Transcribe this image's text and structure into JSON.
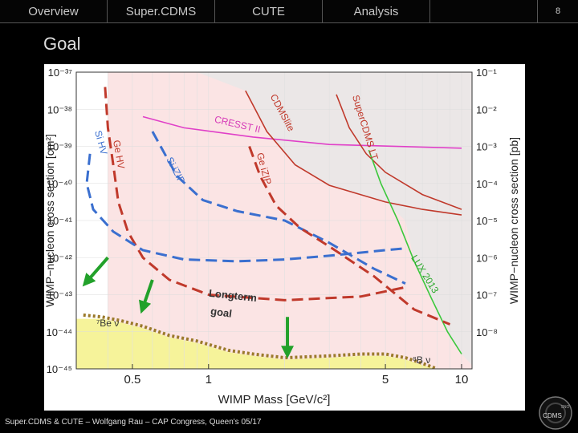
{
  "nav": {
    "tabs": [
      "Overview",
      "Super.CDMS",
      "CUTE",
      "Analysis",
      ""
    ],
    "page_number": "8"
  },
  "slide": {
    "title": "Goal",
    "footer": "Super.CDMS & CUTE – Wolfgang Rau – CAP Congress, Queen's 05/17"
  },
  "logo": {
    "text": "CDMS",
    "small": "SNO"
  },
  "chart_data": {
    "type": "line",
    "xlabel": "WIMP Mass [GeV/c²]",
    "ylabel_left": "WIMP−nucleon cross section [cm²]",
    "ylabel_right": "WIMP−nucleon cross section [pb]",
    "x_scale": "log",
    "y_scale": "log",
    "xlim": [
      0.3,
      11
    ],
    "ylim": [
      1e-45,
      1e-37
    ],
    "x_ticks": [
      {
        "v": 0.5,
        "label": "0.5"
      },
      {
        "v": 1,
        "label": "1"
      },
      {
        "v": 5,
        "label": "5"
      },
      {
        "v": 10,
        "label": "10"
      }
    ],
    "y_ticks_left": [
      {
        "v": -37,
        "label": "10⁻³⁷"
      },
      {
        "v": -38,
        "label": "10⁻³⁸"
      },
      {
        "v": -39,
        "label": "10⁻³⁹"
      },
      {
        "v": -40,
        "label": "10⁻⁴⁰"
      },
      {
        "v": -41,
        "label": "10⁻⁴¹"
      },
      {
        "v": -42,
        "label": "10⁻⁴²"
      },
      {
        "v": -43,
        "label": "10⁻⁴³"
      },
      {
        "v": -44,
        "label": "10⁻⁴⁴"
      },
      {
        "v": -45,
        "label": "10⁻⁴⁵"
      }
    ],
    "y_ticks_right": [
      {
        "v": -37,
        "label": "10⁻¹"
      },
      {
        "v": -38,
        "label": "10⁻²"
      },
      {
        "v": -39,
        "label": "10⁻³"
      },
      {
        "v": -40,
        "label": "10⁻⁴"
      },
      {
        "v": -41,
        "label": "10⁻⁵"
      },
      {
        "v": -42,
        "label": "10⁻⁶"
      },
      {
        "v": -43,
        "label": "10⁻⁷"
      },
      {
        "v": -44,
        "label": "10⁻⁸"
      }
    ],
    "grid": true,
    "series": [
      {
        "name": "CRESST II",
        "style": "solid",
        "color": "#e040c8",
        "points": [
          [
            0.55,
            -38.2
          ],
          [
            0.8,
            -38.5
          ],
          [
            1.5,
            -38.75
          ],
          [
            3,
            -38.95
          ],
          [
            10,
            -39.05
          ]
        ]
      },
      {
        "name": "CDMSlite",
        "style": "solid",
        "color": "#c0392b",
        "points": [
          [
            1.4,
            -37.5
          ],
          [
            1.7,
            -38.6
          ],
          [
            2.2,
            -39.5
          ],
          [
            3,
            -40.05
          ],
          [
            5,
            -40.5
          ],
          [
            7,
            -40.7
          ],
          [
            10,
            -40.85
          ]
        ]
      },
      {
        "name": "SuperCDMS LT",
        "style": "solid",
        "color": "#c0392b",
        "points": [
          [
            3.2,
            -37.6
          ],
          [
            3.6,
            -38.5
          ],
          [
            4.2,
            -39.2
          ],
          [
            5,
            -39.7
          ],
          [
            7,
            -40.3
          ],
          [
            10,
            -40.7
          ]
        ]
      },
      {
        "name": "LUX 2013",
        "style": "solid",
        "color": "#3cc83c",
        "points": [
          [
            4.3,
            -39.1
          ],
          [
            4.8,
            -40.0
          ],
          [
            5.6,
            -41.0
          ],
          [
            6.5,
            -42.1
          ],
          [
            7.6,
            -43.1
          ],
          [
            8.8,
            -44.0
          ],
          [
            10,
            -44.6
          ]
        ]
      },
      {
        "name": "Ge HV",
        "style": "dashed",
        "color": "#c0392b",
        "points": [
          [
            0.39,
            -37.4
          ],
          [
            0.4,
            -38.5
          ],
          [
            0.42,
            -39.5
          ],
          [
            0.44,
            -40.5
          ],
          [
            0.48,
            -41.3
          ],
          [
            0.55,
            -42.0
          ],
          [
            0.7,
            -42.6
          ],
          [
            1,
            -43.0
          ],
          [
            2,
            -43.15
          ],
          [
            4,
            -43.05
          ],
          [
            6,
            -42.8
          ]
        ]
      },
      {
        "name": "Si HV",
        "style": "dashed",
        "color": "#3a6fcf",
        "points": [
          [
            0.34,
            -39.2
          ],
          [
            0.33,
            -40.0
          ],
          [
            0.35,
            -40.7
          ],
          [
            0.42,
            -41.3
          ],
          [
            0.55,
            -41.8
          ],
          [
            0.8,
            -42.05
          ],
          [
            1.3,
            -42.1
          ],
          [
            2,
            -42.05
          ],
          [
            3,
            -41.95
          ],
          [
            5,
            -41.8
          ],
          [
            6,
            -41.75
          ]
        ]
      },
      {
        "name": "Si iZIP",
        "style": "dashed",
        "color": "#3a6fcf",
        "points": [
          [
            0.6,
            -38.6
          ],
          [
            0.75,
            -39.8
          ],
          [
            0.95,
            -40.45
          ],
          [
            1.3,
            -40.75
          ],
          [
            2,
            -41.0
          ],
          [
            3,
            -41.6
          ],
          [
            4.5,
            -42.3
          ],
          [
            6,
            -42.7
          ]
        ]
      },
      {
        "name": "Ge iZIP",
        "style": "dashed",
        "color": "#c0392b",
        "points": [
          [
            1.45,
            -39.0
          ],
          [
            1.6,
            -39.8
          ],
          [
            1.85,
            -40.6
          ],
          [
            2.3,
            -41.2
          ],
          [
            3,
            -41.7
          ],
          [
            4.5,
            -42.5
          ],
          [
            6.5,
            -43.4
          ],
          [
            9,
            -43.8
          ]
        ]
      },
      {
        "name": "Long term goal",
        "style": "dotted",
        "color": "#9b7a2a",
        "points": [
          [
            0.32,
            -43.55
          ],
          [
            0.38,
            -43.6
          ],
          [
            0.45,
            -43.7
          ],
          [
            0.55,
            -43.85
          ],
          [
            0.7,
            -44.1
          ],
          [
            0.9,
            -44.25
          ],
          [
            1.2,
            -44.5
          ],
          [
            1.5,
            -44.6
          ],
          [
            2,
            -44.7
          ],
          [
            3,
            -44.65
          ],
          [
            4,
            -44.6
          ],
          [
            5,
            -44.6
          ],
          [
            6,
            -44.7
          ],
          [
            7,
            -44.85
          ],
          [
            8,
            -45.0
          ]
        ]
      }
    ],
    "neutrino_floor": {
      "color": "#f6f39a",
      "points": [
        [
          0.3,
          -43.65
        ],
        [
          0.38,
          -43.65
        ],
        [
          0.45,
          -43.75
        ],
        [
          0.55,
          -43.9
        ],
        [
          0.7,
          -44.15
        ],
        [
          0.9,
          -44.3
        ],
        [
          1.2,
          -44.55
        ],
        [
          1.5,
          -44.65
        ],
        [
          2,
          -44.75
        ],
        [
          3,
          -44.7
        ],
        [
          4,
          -44.65
        ],
        [
          5,
          -44.65
        ],
        [
          6,
          -44.75
        ],
        [
          7,
          -44.9
        ],
        [
          8,
          -45.0
        ]
      ]
    },
    "labels": [
      {
        "text": "CRESST II",
        "x": 1.05,
        "y": -38.35,
        "rot": 13,
        "color": "#d63ab8"
      },
      {
        "text": "CDMSlite",
        "x": 1.75,
        "y": -37.65,
        "rot": 62,
        "color": "#c0392b"
      },
      {
        "text": "SuperCDMS LT",
        "x": 3.7,
        "y": -37.65,
        "rot": 73,
        "color": "#c0392b"
      },
      {
        "text": "LUX 2013",
        "x": 6.3,
        "y": -42.0,
        "rot": 58,
        "color": "#2aa82a"
      },
      {
        "text": "Si HV",
        "x": 0.355,
        "y": -38.6,
        "rot": 75,
        "color": "#3a6fcf"
      },
      {
        "text": "Ge HV",
        "x": 0.42,
        "y": -38.85,
        "rot": 80,
        "color": "#c0392b"
      },
      {
        "text": "Si iZIP",
        "x": 0.68,
        "y": -39.35,
        "rot": 62,
        "color": "#3a6fcf"
      },
      {
        "text": "Ge iZIP",
        "x": 1.55,
        "y": -39.2,
        "rot": 75,
        "color": "#c0392b"
      },
      {
        "text": "⁷Be ν",
        "x": 0.36,
        "y": -43.85,
        "rot": 0,
        "color": "#333"
      },
      {
        "text": "⁸B ν",
        "x": 6.4,
        "y": -44.85,
        "rot": 0,
        "color": "#333"
      }
    ],
    "annotation": {
      "text": [
        "Long",
        "term",
        "goal"
      ],
      "color": "#333"
    },
    "arrows": [
      {
        "from": [
          0.4,
          -42.0
        ],
        "to": [
          0.33,
          -42.65
        ]
      },
      {
        "from": [
          0.6,
          -42.6
        ],
        "to": [
          0.55,
          -43.35
        ]
      },
      {
        "from": [
          2.05,
          -43.6
        ],
        "to": [
          2.05,
          -44.55
        ]
      }
    ]
  }
}
